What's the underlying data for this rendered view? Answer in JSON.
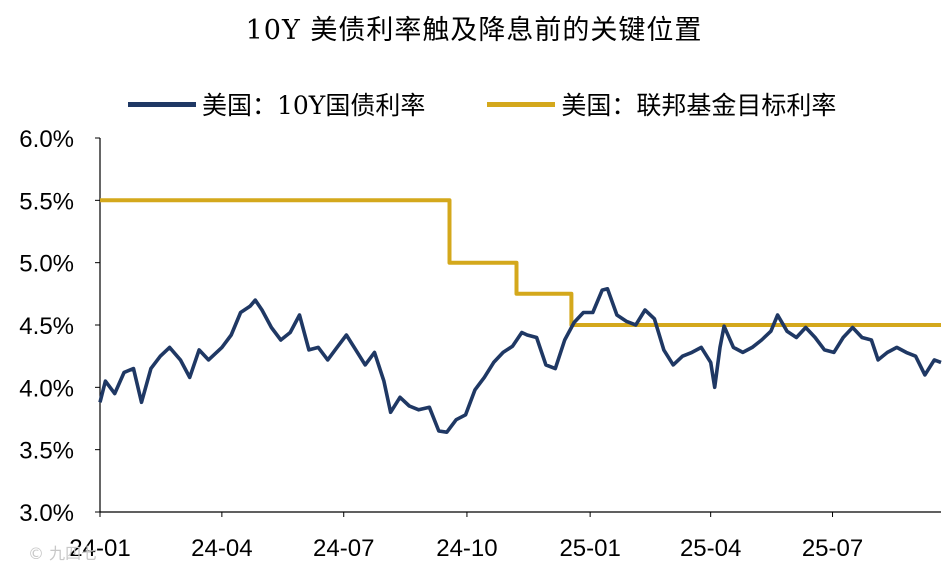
{
  "chart_data": {
    "type": "line",
    "title": "10Y 美债利率触及降息前的关键位置",
    "xlabel": "",
    "ylabel": "",
    "ylim": [
      3.0,
      6.0
    ],
    "yticks": [
      "3.0%",
      "3.5%",
      "4.0%",
      "4.5%",
      "5.0%",
      "5.5%",
      "6.0%"
    ],
    "xticks": [
      "24-01",
      "24-04",
      "24-07",
      "24-10",
      "25-01",
      "25-04",
      "25-07"
    ],
    "xlim": [
      "2024-01-01",
      "2025-09-20"
    ],
    "grid": false,
    "legend_position": "top",
    "series": [
      {
        "name": "美国：10Y国债利率",
        "color": "#1f3864",
        "points": [
          [
            "2024-01-01",
            3.88
          ],
          [
            "2024-01-05",
            4.05
          ],
          [
            "2024-01-12",
            3.95
          ],
          [
            "2024-01-19",
            4.12
          ],
          [
            "2024-01-26",
            4.15
          ],
          [
            "2024-02-01",
            3.88
          ],
          [
            "2024-02-08",
            4.15
          ],
          [
            "2024-02-15",
            4.25
          ],
          [
            "2024-02-22",
            4.32
          ],
          [
            "2024-03-01",
            4.22
          ],
          [
            "2024-03-08",
            4.08
          ],
          [
            "2024-03-15",
            4.3
          ],
          [
            "2024-03-22",
            4.22
          ],
          [
            "2024-04-01",
            4.32
          ],
          [
            "2024-04-08",
            4.42
          ],
          [
            "2024-04-15",
            4.6
          ],
          [
            "2024-04-22",
            4.65
          ],
          [
            "2024-04-26",
            4.7
          ],
          [
            "2024-05-01",
            4.62
          ],
          [
            "2024-05-08",
            4.48
          ],
          [
            "2024-05-15",
            4.38
          ],
          [
            "2024-05-22",
            4.44
          ],
          [
            "2024-05-29",
            4.58
          ],
          [
            "2024-06-05",
            4.3
          ],
          [
            "2024-06-12",
            4.32
          ],
          [
            "2024-06-19",
            4.22
          ],
          [
            "2024-06-26",
            4.32
          ],
          [
            "2024-07-03",
            4.42
          ],
          [
            "2024-07-10",
            4.3
          ],
          [
            "2024-07-17",
            4.18
          ],
          [
            "2024-07-24",
            4.28
          ],
          [
            "2024-07-31",
            4.05
          ],
          [
            "2024-08-05",
            3.8
          ],
          [
            "2024-08-12",
            3.92
          ],
          [
            "2024-08-19",
            3.85
          ],
          [
            "2024-08-26",
            3.82
          ],
          [
            "2024-09-03",
            3.84
          ],
          [
            "2024-09-10",
            3.65
          ],
          [
            "2024-09-16",
            3.64
          ],
          [
            "2024-09-23",
            3.74
          ],
          [
            "2024-09-30",
            3.78
          ],
          [
            "2024-10-07",
            3.98
          ],
          [
            "2024-10-14",
            4.08
          ],
          [
            "2024-10-21",
            4.2
          ],
          [
            "2024-10-28",
            4.28
          ],
          [
            "2024-11-04",
            4.33
          ],
          [
            "2024-11-11",
            4.44
          ],
          [
            "2024-11-15",
            4.42
          ],
          [
            "2024-11-22",
            4.4
          ],
          [
            "2024-11-29",
            4.18
          ],
          [
            "2024-12-06",
            4.15
          ],
          [
            "2024-12-13",
            4.38
          ],
          [
            "2024-12-20",
            4.52
          ],
          [
            "2024-12-27",
            4.6
          ],
          [
            "2025-01-03",
            4.6
          ],
          [
            "2025-01-10",
            4.78
          ],
          [
            "2025-01-14",
            4.79
          ],
          [
            "2025-01-21",
            4.58
          ],
          [
            "2025-01-28",
            4.53
          ],
          [
            "2025-02-04",
            4.5
          ],
          [
            "2025-02-11",
            4.62
          ],
          [
            "2025-02-18",
            4.55
          ],
          [
            "2025-02-25",
            4.3
          ],
          [
            "2025-03-04",
            4.18
          ],
          [
            "2025-03-11",
            4.25
          ],
          [
            "2025-03-18",
            4.28
          ],
          [
            "2025-03-25",
            4.32
          ],
          [
            "2025-04-01",
            4.2
          ],
          [
            "2025-04-04",
            4.0
          ],
          [
            "2025-04-08",
            4.32
          ],
          [
            "2025-04-11",
            4.49
          ],
          [
            "2025-04-18",
            4.32
          ],
          [
            "2025-04-25",
            4.28
          ],
          [
            "2025-05-02",
            4.32
          ],
          [
            "2025-05-09",
            4.38
          ],
          [
            "2025-05-16",
            4.45
          ],
          [
            "2025-05-21",
            4.58
          ],
          [
            "2025-05-28",
            4.45
          ],
          [
            "2025-06-04",
            4.4
          ],
          [
            "2025-06-11",
            4.48
          ],
          [
            "2025-06-18",
            4.4
          ],
          [
            "2025-06-25",
            4.3
          ],
          [
            "2025-07-02",
            4.28
          ],
          [
            "2025-07-09",
            4.4
          ],
          [
            "2025-07-16",
            4.48
          ],
          [
            "2025-07-23",
            4.4
          ],
          [
            "2025-07-30",
            4.38
          ],
          [
            "2025-08-04",
            4.22
          ],
          [
            "2025-08-11",
            4.28
          ],
          [
            "2025-08-18",
            4.32
          ],
          [
            "2025-08-25",
            4.28
          ],
          [
            "2025-09-01",
            4.25
          ],
          [
            "2025-09-08",
            4.1
          ],
          [
            "2025-09-15",
            4.22
          ],
          [
            "2025-09-20",
            4.2
          ]
        ]
      },
      {
        "name": "美国：联邦基金目标利率",
        "color": "#d4a81c",
        "points": [
          [
            "2024-01-01",
            5.5
          ],
          [
            "2024-09-18",
            5.5
          ],
          [
            "2024-09-18",
            5.0
          ],
          [
            "2024-11-07",
            5.0
          ],
          [
            "2024-11-07",
            4.75
          ],
          [
            "2024-12-18",
            4.75
          ],
          [
            "2024-12-18",
            4.5
          ],
          [
            "2025-09-20",
            4.5
          ]
        ]
      }
    ]
  }
}
